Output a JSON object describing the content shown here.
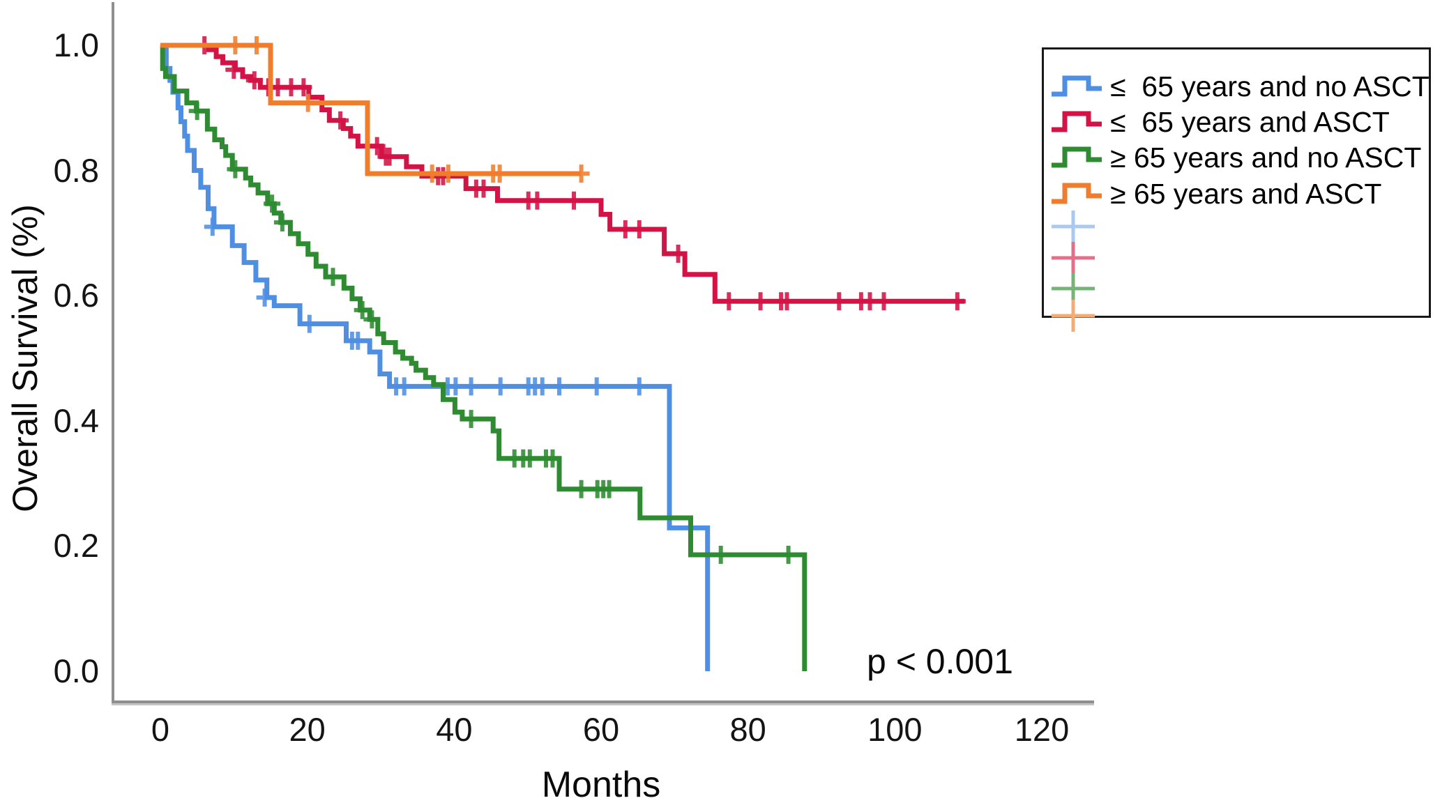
{
  "annotation": {
    "p_value": "p < 0.001"
  },
  "axes": {
    "ylabel": "Overall Survival (%)",
    "xlabel": "Months"
  },
  "legend": {
    "items": [
      {
        "label": "≤  65 years and no ASCT"
      },
      {
        "label": "≤  65 years and ASCT"
      },
      {
        "label": "≥ 65 years and no ASCT"
      },
      {
        "label": "≥ 65 years and ASCT"
      }
    ]
  },
  "chart_data": {
    "type": "line",
    "subtype": "kaplan-meier-step-survival",
    "title": "",
    "xlabel": "Months",
    "ylabel": "Overall Survival (%)",
    "xlim": [
      0,
      120
    ],
    "ylim": [
      0.0,
      1.0
    ],
    "grid": false,
    "legend_position": "top-right",
    "annotation": "p < 0.001",
    "x_ticks": [
      {
        "label": "0",
        "value": 0
      },
      {
        "label": "20",
        "value": 20
      },
      {
        "label": "40",
        "value": 40
      },
      {
        "label": "60",
        "value": 60
      },
      {
        "label": "80",
        "value": 80
      },
      {
        "label": "100",
        "value": 100
      },
      {
        "label": "120",
        "value": 120
      }
    ],
    "y_ticks": [
      {
        "label": "0.0",
        "value": 0.0
      },
      {
        "label": "0.2",
        "value": 0.2
      },
      {
        "label": "0.4",
        "value": 0.4
      },
      {
        "label": "0.6",
        "value": 0.6
      },
      {
        "label": "0.8",
        "value": 0.8
      },
      {
        "label": "1.0",
        "value": 1.0
      }
    ],
    "series": [
      {
        "name": "≤ 65 years and no ASCT",
        "color": "#4E8FE3",
        "censor_color": "#A9C9F0",
        "steps": [
          [
            0,
            1.0
          ],
          [
            0.8,
            0.963
          ],
          [
            1.3,
            0.944
          ],
          [
            1.7,
            0.925
          ],
          [
            2.4,
            0.9
          ],
          [
            2.8,
            0.878
          ],
          [
            3.3,
            0.855
          ],
          [
            3.7,
            0.832
          ],
          [
            4.6,
            0.8
          ],
          [
            5.5,
            0.773
          ],
          [
            6.5,
            0.739
          ],
          [
            7.3,
            0.71
          ],
          [
            9.8,
            0.68
          ],
          [
            11.4,
            0.653
          ],
          [
            13.0,
            0.625
          ],
          [
            14.5,
            0.597
          ],
          [
            15.5,
            0.584
          ],
          [
            19.0,
            0.555
          ],
          [
            25.3,
            0.528
          ],
          [
            28.5,
            0.51
          ],
          [
            29.9,
            0.475
          ],
          [
            31.2,
            0.455
          ],
          [
            69.3,
            0.229
          ],
          [
            74.5,
            0.0
          ]
        ],
        "censors": [
          [
            7.1,
            0.71
          ],
          [
            14.2,
            0.597
          ],
          [
            20.3,
            0.555
          ],
          [
            26.1,
            0.528
          ],
          [
            26.9,
            0.528
          ],
          [
            32.1,
            0.455
          ],
          [
            33.2,
            0.455
          ],
          [
            39.1,
            0.455
          ],
          [
            40.2,
            0.455
          ],
          [
            42.3,
            0.455
          ],
          [
            46.3,
            0.455
          ],
          [
            50.1,
            0.455
          ],
          [
            51.0,
            0.455
          ],
          [
            52.0,
            0.455
          ],
          [
            54.3,
            0.455
          ],
          [
            59.4,
            0.455
          ],
          [
            65.2,
            0.455
          ]
        ]
      },
      {
        "name": "≤ 65 years and ASCT",
        "color": "#D31245",
        "censor_color": "#E56E88",
        "steps": [
          [
            0,
            1.0
          ],
          [
            6.6,
            0.993
          ],
          [
            7.6,
            0.982
          ],
          [
            8.5,
            0.972
          ],
          [
            10.2,
            0.961
          ],
          [
            11.2,
            0.95
          ],
          [
            12.3,
            0.944
          ],
          [
            13.6,
            0.933
          ],
          [
            20.2,
            0.917
          ],
          [
            22.0,
            0.897
          ],
          [
            23.0,
            0.88
          ],
          [
            24.9,
            0.867
          ],
          [
            25.9,
            0.855
          ],
          [
            26.9,
            0.839
          ],
          [
            30.1,
            0.822
          ],
          [
            33.5,
            0.806
          ],
          [
            35.6,
            0.791
          ],
          [
            41.6,
            0.771
          ],
          [
            45.9,
            0.752
          ],
          [
            60.0,
            0.73
          ],
          [
            61.2,
            0.706
          ],
          [
            68.6,
            0.667
          ],
          [
            71.4,
            0.634
          ],
          [
            75.5,
            0.591
          ],
          [
            109.5,
            0.591
          ]
        ],
        "censors": [
          [
            6.0,
            1.0
          ],
          [
            10.0,
            0.961
          ],
          [
            12.8,
            0.944
          ],
          [
            14.7,
            0.933
          ],
          [
            16.0,
            0.933
          ],
          [
            17.8,
            0.933
          ],
          [
            19.5,
            0.933
          ],
          [
            24.5,
            0.88
          ],
          [
            29.5,
            0.839
          ],
          [
            30.7,
            0.822
          ],
          [
            31.2,
            0.822
          ],
          [
            37.8,
            0.791
          ],
          [
            38.5,
            0.791
          ],
          [
            43.0,
            0.771
          ],
          [
            44.0,
            0.771
          ],
          [
            50.1,
            0.752
          ],
          [
            51.3,
            0.752
          ],
          [
            56.3,
            0.752
          ],
          [
            63.3,
            0.706
          ],
          [
            65.2,
            0.706
          ],
          [
            70.5,
            0.667
          ],
          [
            77.4,
            0.591
          ],
          [
            81.7,
            0.591
          ],
          [
            84.5,
            0.591
          ],
          [
            85.3,
            0.591
          ],
          [
            92.4,
            0.591
          ],
          [
            95.4,
            0.591
          ],
          [
            96.6,
            0.591
          ],
          [
            98.5,
            0.591
          ],
          [
            108.5,
            0.591
          ]
        ]
      },
      {
        "name": "≥ 65 years and no ASCT",
        "color": "#2E8B31",
        "censor_color": "#77B377",
        "steps": [
          [
            0,
            1.0
          ],
          [
            0.3,
            0.963
          ],
          [
            0.7,
            0.95
          ],
          [
            1.9,
            0.927
          ],
          [
            3.6,
            0.908
          ],
          [
            4.9,
            0.895
          ],
          [
            6.4,
            0.866
          ],
          [
            7.4,
            0.849
          ],
          [
            8.4,
            0.838
          ],
          [
            8.9,
            0.824
          ],
          [
            9.8,
            0.802
          ],
          [
            11.6,
            0.788
          ],
          [
            12.3,
            0.777
          ],
          [
            13.3,
            0.764
          ],
          [
            14.6,
            0.747
          ],
          [
            15.5,
            0.732
          ],
          [
            16.4,
            0.717
          ],
          [
            17.7,
            0.699
          ],
          [
            18.8,
            0.683
          ],
          [
            20.1,
            0.666
          ],
          [
            21.2,
            0.647
          ],
          [
            22.5,
            0.63
          ],
          [
            25.0,
            0.612
          ],
          [
            26.1,
            0.595
          ],
          [
            27.2,
            0.577
          ],
          [
            28.5,
            0.562
          ],
          [
            29.6,
            0.539
          ],
          [
            30.4,
            0.525
          ],
          [
            32.0,
            0.51
          ],
          [
            33.0,
            0.5
          ],
          [
            34.2,
            0.492
          ],
          [
            34.8,
            0.481
          ],
          [
            36.1,
            0.469
          ],
          [
            37.2,
            0.458
          ],
          [
            38.5,
            0.434
          ],
          [
            40.1,
            0.414
          ],
          [
            41.1,
            0.403
          ],
          [
            45.3,
            0.384
          ],
          [
            46.1,
            0.34
          ],
          [
            54.3,
            0.291
          ],
          [
            65.3,
            0.245
          ],
          [
            72.2,
            0.186
          ],
          [
            87.7,
            0.0
          ]
        ],
        "censors": [
          [
            5.0,
            0.895
          ],
          [
            10.2,
            0.802
          ],
          [
            15.2,
            0.747
          ],
          [
            16.6,
            0.717
          ],
          [
            23.5,
            0.63
          ],
          [
            27.5,
            0.577
          ],
          [
            28.8,
            0.562
          ],
          [
            42.3,
            0.403
          ],
          [
            48.2,
            0.34
          ],
          [
            49.4,
            0.34
          ],
          [
            50.3,
            0.34
          ],
          [
            52.5,
            0.34
          ],
          [
            53.4,
            0.34
          ],
          [
            57.3,
            0.291
          ],
          [
            59.5,
            0.291
          ],
          [
            60.3,
            0.291
          ],
          [
            61.1,
            0.291
          ],
          [
            76.3,
            0.186
          ],
          [
            85.5,
            0.186
          ]
        ]
      },
      {
        "name": "≥ 65 years and ASCT",
        "color": "#EF7D2E",
        "censor_color": "#F5AC74",
        "steps": [
          [
            0,
            1.0
          ],
          [
            15.0,
            0.908
          ],
          [
            28.2,
            0.795
          ],
          [
            57.3,
            0.795
          ]
        ],
        "censors": [
          [
            10.2,
            1.0
          ],
          [
            13.1,
            1.0
          ],
          [
            20.1,
            0.908
          ],
          [
            37.0,
            0.795
          ],
          [
            39.2,
            0.795
          ],
          [
            45.3,
            0.795
          ],
          [
            46.2,
            0.795
          ],
          [
            57.3,
            0.795
          ]
        ]
      }
    ]
  }
}
